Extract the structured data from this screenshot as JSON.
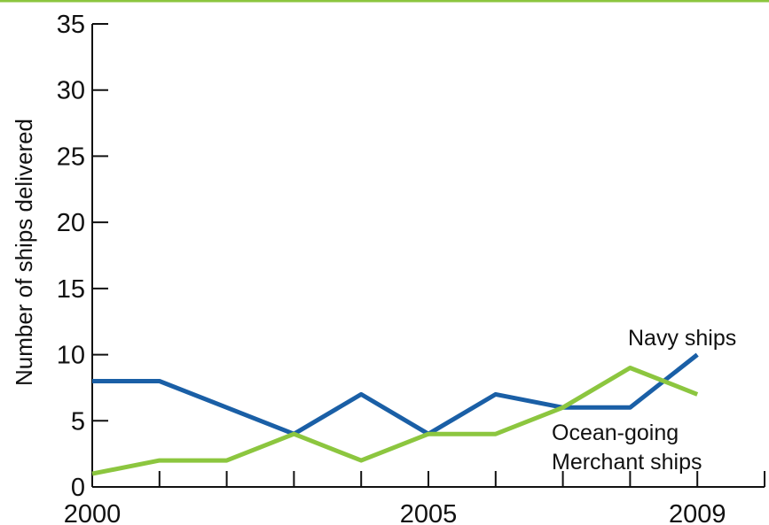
{
  "chart_data": {
    "type": "line",
    "ylabel": "Number of ships delivered",
    "ylim": [
      0,
      35
    ],
    "yticks": [
      0,
      5,
      10,
      15,
      20,
      25,
      30,
      35
    ],
    "x": [
      2000,
      2001,
      2002,
      2003,
      2004,
      2005,
      2006,
      2007,
      2008,
      2009
    ],
    "xlim": [
      2000,
      2010
    ],
    "xtick_labels": [
      {
        "x": 2000,
        "label": "2000"
      },
      {
        "x": 2005,
        "label": "2005"
      },
      {
        "x": 2009,
        "label": "2009"
      }
    ],
    "grid": false,
    "series": [
      {
        "name": "Navy ships",
        "color": "#1a5fa6",
        "values": [
          8,
          8,
          6,
          4,
          7,
          4,
          7,
          6,
          6,
          10
        ]
      },
      {
        "name": "Ocean-going Merchant ships",
        "label_lines": [
          "Ocean-going",
          "Merchant ships"
        ],
        "color": "#8cc63f",
        "values": [
          1,
          2,
          2,
          4,
          2,
          4,
          4,
          6,
          9,
          7
        ]
      }
    ],
    "top_rule_color": "#8cc63f"
  }
}
